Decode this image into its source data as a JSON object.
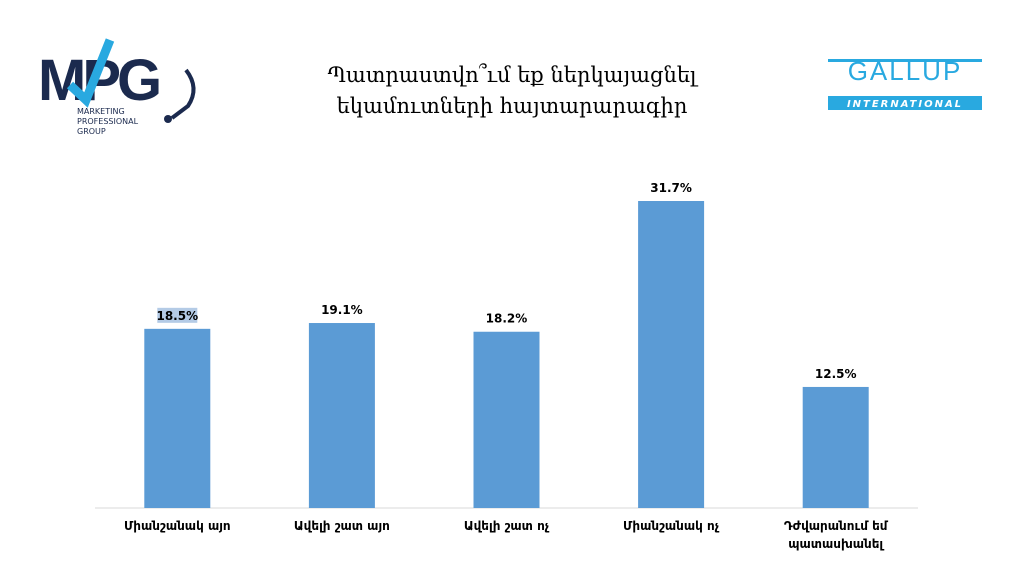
{
  "logos": {
    "mpg": {
      "mark": "MPG",
      "tagline": [
        "MARKETING",
        "PROFESSIONAL",
        "GROUP"
      ]
    },
    "gallup": {
      "name": "GALLUP",
      "sub": "INTERNATIONAL"
    }
  },
  "chart_data": {
    "type": "bar",
    "title": [
      "Պատրաստվո՞ւմ եք ներկայացնել",
      "եկամուտների հայտարարագիր"
    ],
    "categories": [
      "Միանշանակ այո",
      "Ավելի շատ այո",
      "Ավելի շատ ոչ",
      "Միանշանակ ոչ",
      "Դժվարանում եմ պատասխանել"
    ],
    "values": [
      18.5,
      19.1,
      18.2,
      31.7,
      12.5
    ],
    "value_labels": [
      "18.5%",
      "19.1%",
      "18.2%",
      "31.7%",
      "12.5%"
    ],
    "color": "#5b9bd5"
  }
}
